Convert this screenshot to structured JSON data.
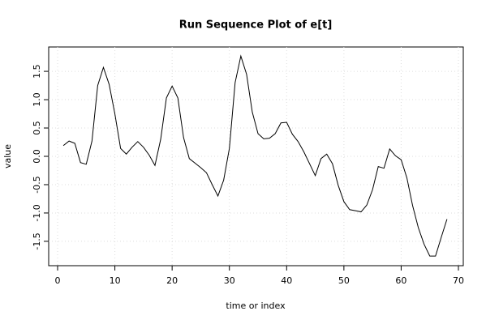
{
  "chart_data": {
    "type": "line",
    "title": "Run Sequence Plot of e[t]",
    "xlabel": "time or index",
    "ylabel": "value",
    "x": [
      1,
      2,
      3,
      4,
      5,
      6,
      7,
      8,
      9,
      10,
      11,
      12,
      13,
      14,
      15,
      16,
      17,
      18,
      19,
      20,
      21,
      22,
      23,
      24,
      25,
      26,
      27,
      28,
      29,
      30,
      31,
      32,
      33,
      34,
      35,
      36,
      37,
      38,
      39,
      40,
      41,
      42,
      43,
      44,
      45,
      46,
      47,
      48,
      49,
      50,
      51,
      52,
      53,
      54,
      55,
      56,
      57,
      58,
      59,
      60,
      61,
      62,
      63,
      64,
      65,
      66,
      67,
      68
    ],
    "values": [
      0.19,
      0.27,
      0.23,
      -0.11,
      -0.14,
      0.27,
      1.25,
      1.57,
      1.27,
      0.75,
      0.14,
      0.04,
      0.16,
      0.26,
      0.16,
      0.02,
      -0.16,
      0.3,
      1.03,
      1.24,
      1.03,
      0.33,
      -0.04,
      -0.12,
      -0.2,
      -0.29,
      -0.5,
      -0.7,
      -0.42,
      0.14,
      1.3,
      1.77,
      1.45,
      0.78,
      0.4,
      0.31,
      0.32,
      0.4,
      0.59,
      0.6,
      0.39,
      0.26,
      0.08,
      -0.13,
      -0.34,
      -0.04,
      0.04,
      -0.13,
      -0.51,
      -0.8,
      -0.94,
      -0.96,
      -0.98,
      -0.86,
      -0.59,
      -0.18,
      -0.21,
      0.13,
      0.01,
      -0.06,
      -0.38,
      -0.87,
      -1.26,
      -1.55,
      -1.76,
      -1.76,
      -1.43,
      -1.11
    ],
    "color": "#000000",
    "xlim": [
      -1.56,
      70.85
    ],
    "ylim": [
      -1.93,
      1.93
    ],
    "xticks": [
      0,
      10,
      20,
      30,
      40,
      50,
      60,
      70
    ],
    "yticks": [
      -1.5,
      {
        "value": -1,
        "label": "-1.0"
      },
      -0.5,
      {
        "value": 0,
        "label": "0.0"
      },
      0.5,
      {
        "value": 1,
        "label": "1.0"
      },
      1.5
    ],
    "grid": true
  }
}
